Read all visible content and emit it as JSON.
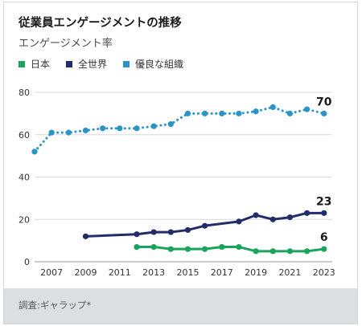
{
  "chart_data": {
    "type": "line",
    "title": "従業員エンゲージメントの推移",
    "subtitle": "エンゲージメント率",
    "source": "調査:ギャラップ*",
    "ylim": [
      0,
      80
    ],
    "yticks": [
      0,
      20,
      40,
      60,
      80
    ],
    "xlim": [
      2006,
      2023.2
    ],
    "xticks": [
      2007,
      2009,
      2011,
      2013,
      2015,
      2017,
      2019,
      2021,
      2023
    ],
    "grid": true,
    "legend_position": "top-left",
    "series": [
      {
        "name": "日本",
        "color": "#1aa35a",
        "style": "solid",
        "end_label": "6",
        "points": [
          [
            2012,
            7
          ],
          [
            2013,
            7
          ],
          [
            2014,
            6
          ],
          [
            2015,
            6
          ],
          [
            2016,
            6
          ],
          [
            2017,
            7
          ],
          [
            2018,
            7
          ],
          [
            2019,
            5
          ],
          [
            2020,
            5
          ],
          [
            2021,
            5
          ],
          [
            2022,
            5
          ],
          [
            2023,
            6
          ]
        ]
      },
      {
        "name": "全世界",
        "color": "#232c6a",
        "style": "solid",
        "end_label": "23",
        "points": [
          [
            2009,
            12
          ],
          [
            2012,
            13
          ],
          [
            2013,
            14
          ],
          [
            2014,
            14
          ],
          [
            2015,
            15
          ],
          [
            2016,
            17
          ],
          [
            2018,
            19
          ],
          [
            2019,
            22
          ],
          [
            2020,
            20
          ],
          [
            2021,
            21
          ],
          [
            2022,
            23
          ],
          [
            2023,
            23
          ]
        ]
      },
      {
        "name": "優良な組織",
        "color": "#2a94c8",
        "style": "dotted",
        "end_label": "70",
        "points": [
          [
            2006,
            52
          ],
          [
            2007,
            61
          ],
          [
            2008,
            61
          ],
          [
            2009,
            62
          ],
          [
            2010,
            63
          ],
          [
            2011,
            63
          ],
          [
            2012,
            63
          ],
          [
            2013,
            64
          ],
          [
            2014,
            65
          ],
          [
            2015,
            70
          ],
          [
            2016,
            70
          ],
          [
            2017,
            70
          ],
          [
            2018,
            70
          ],
          [
            2019,
            71
          ],
          [
            2020,
            73
          ],
          [
            2021,
            70
          ],
          [
            2022,
            72
          ],
          [
            2023,
            70
          ]
        ]
      }
    ]
  }
}
